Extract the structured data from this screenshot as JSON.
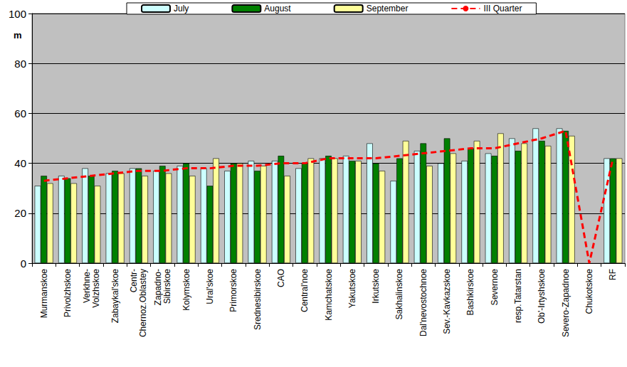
{
  "chart_data": {
    "type": "bar",
    "y_label": "m",
    "categories": [
      "Murmanskoe",
      "Privolzhskoe",
      "Verkhne-\nVolzhskoe",
      "Zabaykal'skoe",
      "Centr-\nChernoz.Oblastey",
      "Zapadno-\nSibirskoe",
      "Kolymskoe",
      "Ural'skoe",
      "Primorskoe",
      "Srednesibirskoe",
      "CAO",
      "Central'noe",
      "Kamchatskoe",
      "Yakutskoe",
      "Irkutskoe",
      "Sakhalinskoe",
      "Dal'nevostochnoe",
      "Sev.-Kavkazskoe",
      "Bashkirskoe",
      "Severnoe",
      "resp.Tatarstan",
      "Ob'-Irtyshskoe",
      "Severo-Zapadnoe",
      "Chukotskoe",
      "RF"
    ],
    "series": [
      {
        "name": "July",
        "type": "bar",
        "color": "#ccffff",
        "values": [
          31,
          35,
          38,
          36,
          38,
          37,
          39,
          38,
          37,
          41,
          41,
          38,
          42,
          43,
          48,
          33,
          45,
          40,
          41,
          44,
          50,
          54,
          54,
          null,
          42
        ]
      },
      {
        "name": "August",
        "type": "bar",
        "color": "#008000",
        "values": [
          35,
          34,
          35,
          37,
          38,
          39,
          40,
          31,
          40,
          37,
          43,
          40,
          43,
          41,
          40,
          42,
          48,
          50,
          46,
          43,
          45,
          49,
          53,
          null,
          42
        ]
      },
      {
        "name": "September",
        "type": "bar",
        "color": "#ffff99",
        "values": [
          32,
          32,
          31,
          36,
          35,
          36,
          35,
          42,
          40,
          39,
          35,
          42,
          42,
          41,
          37,
          49,
          39,
          44,
          49,
          52,
          48,
          47,
          51,
          null,
          42
        ]
      },
      {
        "name": "III Quarter",
        "type": "line",
        "color": "#ff0000",
        "line_style": "dashed",
        "values": [
          33,
          34,
          35,
          36,
          37,
          37,
          38,
          38,
          39,
          39,
          40,
          40,
          42,
          42,
          42,
          43,
          44,
          45,
          46,
          46,
          48,
          50,
          53,
          0,
          42
        ]
      }
    ],
    "ylim": [
      0,
      100
    ],
    "yticks": [
      0,
      20,
      40,
      60,
      80,
      100
    ],
    "grid": true,
    "legend": "top"
  }
}
